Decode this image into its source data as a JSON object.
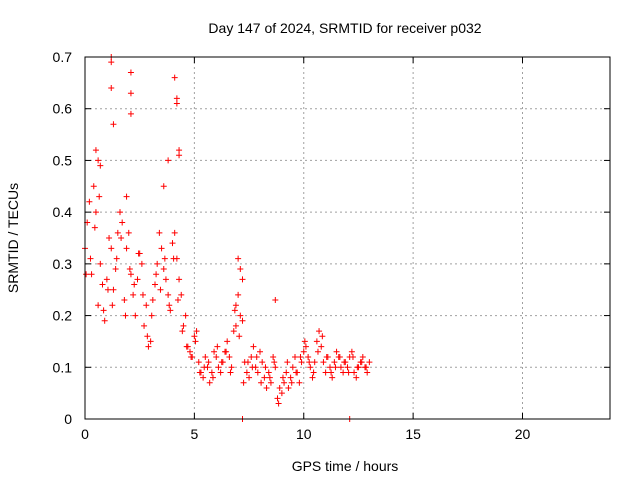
{
  "chart_data": {
    "type": "scatter",
    "title": "Day 147 of 2024, SRMTID for receiver p032",
    "xlabel": "GPS time / hours",
    "ylabel": "SRMTID / TECUs",
    "xlim": [
      0,
      24
    ],
    "ylim": [
      0,
      0.7
    ],
    "xticks": [
      "0",
      "5",
      "10",
      "15",
      "20"
    ],
    "yticks": [
      "0",
      "0.1",
      "0.2",
      "0.3",
      "0.4",
      "0.5",
      "0.6",
      "0.7"
    ],
    "grid": true,
    "marker": "+",
    "color": "#ff0000",
    "x": [
      0.0,
      0.1,
      0.2,
      0.3,
      0.4,
      0.5,
      0.6,
      0.7,
      0.8,
      0.9,
      1.0,
      1.1,
      1.2,
      1.3,
      1.4,
      1.5,
      1.6,
      1.7,
      1.8,
      1.9,
      2.0,
      2.1,
      2.2,
      2.3,
      2.4,
      2.5,
      2.6,
      2.7,
      2.8,
      2.9,
      3.0,
      3.1,
      3.2,
      3.3,
      3.4,
      3.5,
      3.6,
      3.7,
      3.8,
      3.9,
      4.0,
      4.1,
      4.2,
      4.3,
      4.4,
      4.5,
      4.6,
      4.7,
      4.8,
      4.9,
      5.0,
      5.1,
      5.2,
      5.3,
      5.4,
      5.5,
      5.6,
      5.7,
      5.8,
      5.9,
      6.0,
      6.1,
      6.2,
      6.3,
      6.4,
      6.5,
      6.6,
      6.7,
      6.8,
      6.9,
      7.0,
      7.1,
      7.2,
      7.3,
      7.4,
      7.5,
      7.6,
      7.7,
      7.8,
      7.9,
      8.0,
      8.1,
      8.2,
      8.3,
      8.4,
      8.5,
      8.6,
      8.7,
      8.8,
      8.9,
      9.0,
      9.1,
      9.2,
      9.3,
      9.4,
      9.5,
      9.6,
      9.7,
      9.8,
      9.9,
      10.0,
      10.1,
      10.2,
      10.3,
      10.4,
      10.5,
      10.6,
      10.7,
      10.8,
      10.9,
      11.0,
      11.1,
      11.2,
      11.3,
      11.4,
      11.5,
      11.6,
      11.7,
      11.8,
      11.9,
      12.0,
      12.1,
      12.2,
      12.3,
      12.4,
      12.5,
      12.6,
      12.7,
      12.8,
      12.9,
      13.0,
      0.05,
      0.25,
      0.45,
      0.65,
      0.85,
      1.05,
      1.25,
      1.45,
      1.65,
      1.85,
      2.05,
      2.25,
      2.45,
      2.65,
      2.85,
      3.05,
      3.25,
      3.45,
      3.65,
      3.85,
      4.05,
      4.25,
      4.45,
      4.65,
      4.85,
      5.05,
      5.25,
      5.45,
      5.65,
      5.85,
      6.05,
      6.25,
      6.45,
      6.65,
      6.85,
      7.05,
      7.25,
      7.45,
      7.65,
      7.85,
      8.05,
      8.25,
      8.45,
      8.65,
      8.85,
      9.05,
      9.25,
      9.45,
      9.65,
      9.85,
      10.05,
      10.25,
      10.45,
      10.65,
      10.85,
      11.05,
      11.25,
      11.45,
      11.65,
      11.85,
      12.05,
      12.25,
      12.45,
      12.65,
      12.85,
      1.2,
      1.2,
      1.2,
      1.3,
      2.1,
      2.1,
      2.1,
      4.1,
      4.2,
      4.2,
      4.3,
      4.3,
      0.5,
      0.6,
      0.7,
      3.6,
      3.8,
      1.9,
      7.0,
      7.1,
      7.2,
      8.7,
      12.1,
      7.2,
      6.9
    ],
    "y": [
      0.33,
      0.38,
      0.42,
      0.28,
      0.45,
      0.4,
      0.22,
      0.3,
      0.26,
      0.19,
      0.27,
      0.35,
      0.33,
      0.25,
      0.29,
      0.36,
      0.4,
      0.38,
      0.23,
      0.33,
      0.36,
      0.28,
      0.24,
      0.2,
      0.27,
      0.32,
      0.3,
      0.18,
      0.22,
      0.14,
      0.15,
      0.23,
      0.26,
      0.3,
      0.36,
      0.33,
      0.29,
      0.27,
      0.24,
      0.21,
      0.34,
      0.36,
      0.31,
      0.27,
      0.24,
      0.18,
      0.2,
      0.14,
      0.13,
      0.12,
      0.16,
      0.17,
      0.11,
      0.09,
      0.08,
      0.12,
      0.1,
      0.07,
      0.09,
      0.13,
      0.12,
      0.1,
      0.09,
      0.11,
      0.13,
      0.15,
      0.12,
      0.1,
      0.17,
      0.22,
      0.24,
      0.2,
      0.19,
      0.11,
      0.09,
      0.08,
      0.12,
      0.14,
      0.1,
      0.09,
      0.13,
      0.11,
      0.08,
      0.06,
      0.09,
      0.07,
      0.12,
      0.1,
      0.04,
      0.06,
      0.05,
      0.07,
      0.09,
      0.06,
      0.08,
      0.1,
      0.12,
      0.09,
      0.07,
      0.11,
      0.13,
      0.14,
      0.12,
      0.1,
      0.08,
      0.11,
      0.15,
      0.17,
      0.14,
      0.11,
      0.09,
      0.12,
      0.1,
      0.08,
      0.11,
      0.13,
      0.12,
      0.1,
      0.09,
      0.11,
      0.1,
      0.12,
      0.13,
      0.09,
      0.08,
      0.1,
      0.11,
      0.12,
      0.1,
      0.09,
      0.11,
      0.28,
      0.31,
      0.37,
      0.43,
      0.21,
      0.25,
      0.22,
      0.31,
      0.35,
      0.2,
      0.29,
      0.26,
      0.32,
      0.24,
      0.16,
      0.2,
      0.28,
      0.25,
      0.31,
      0.22,
      0.31,
      0.23,
      0.17,
      0.14,
      0.12,
      0.15,
      0.09,
      0.1,
      0.11,
      0.08,
      0.14,
      0.11,
      0.13,
      0.09,
      0.21,
      0.16,
      0.07,
      0.11,
      0.1,
      0.12,
      0.07,
      0.1,
      0.08,
      0.11,
      0.03,
      0.08,
      0.11,
      0.07,
      0.09,
      0.12,
      0.15,
      0.11,
      0.09,
      0.13,
      0.16,
      0.12,
      0.09,
      0.1,
      0.12,
      0.11,
      0.09,
      0.12,
      0.1,
      0.11,
      0.1,
      0.7,
      0.69,
      0.64,
      0.57,
      0.67,
      0.63,
      0.59,
      0.66,
      0.61,
      0.62,
      0.51,
      0.52,
      0.52,
      0.5,
      0.49,
      0.45,
      0.5,
      0.43,
      0.31,
      0.29,
      0.27,
      0.23,
      0.0,
      0.0,
      0.18
    ]
  }
}
